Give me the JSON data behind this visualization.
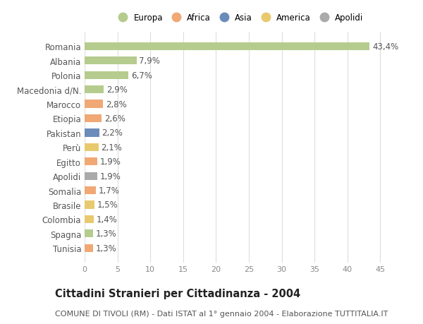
{
  "countries": [
    "Romania",
    "Albania",
    "Polonia",
    "Macedonia d/N.",
    "Marocco",
    "Etiopia",
    "Pakistan",
    "Perù",
    "Egitto",
    "Apolidi",
    "Somalia",
    "Brasile",
    "Colombia",
    "Spagna",
    "Tunisia"
  ],
  "values": [
    43.4,
    7.9,
    6.7,
    2.9,
    2.8,
    2.6,
    2.2,
    2.1,
    1.9,
    1.9,
    1.7,
    1.5,
    1.4,
    1.3,
    1.3
  ],
  "labels": [
    "43,4%",
    "7,9%",
    "6,7%",
    "2,9%",
    "2,8%",
    "2,6%",
    "2,2%",
    "2,1%",
    "1,9%",
    "1,9%",
    "1,7%",
    "1,5%",
    "1,4%",
    "1,3%",
    "1,3%"
  ],
  "colors": [
    "#b5cc8e",
    "#b5cc8e",
    "#b5cc8e",
    "#b5cc8e",
    "#f0a875",
    "#f0a875",
    "#6b8cba",
    "#e8c96e",
    "#f0a875",
    "#aaaaaa",
    "#f0a875",
    "#e8c96e",
    "#e8c96e",
    "#b5cc8e",
    "#f0a875"
  ],
  "legend": {
    "labels": [
      "Europa",
      "Africa",
      "Asia",
      "America",
      "Apolidi"
    ],
    "colors": [
      "#b5cc8e",
      "#f0a875",
      "#6b8cba",
      "#e8c96e",
      "#aaaaaa"
    ]
  },
  "xlim": [
    0,
    47
  ],
  "xticks": [
    0,
    5,
    10,
    15,
    20,
    25,
    30,
    35,
    40,
    45
  ],
  "title": "Cittadini Stranieri per Cittadinanza - 2004",
  "subtitle": "COMUNE DI TIVOLI (RM) - Dati ISTAT al 1° gennaio 2004 - Elaborazione TUTTITALIA.IT",
  "bg_color": "#ffffff",
  "grid_color": "#dddddd",
  "bar_height": 0.55,
  "label_fontsize": 8.5,
  "tick_fontsize": 8,
  "title_fontsize": 10.5,
  "subtitle_fontsize": 8
}
